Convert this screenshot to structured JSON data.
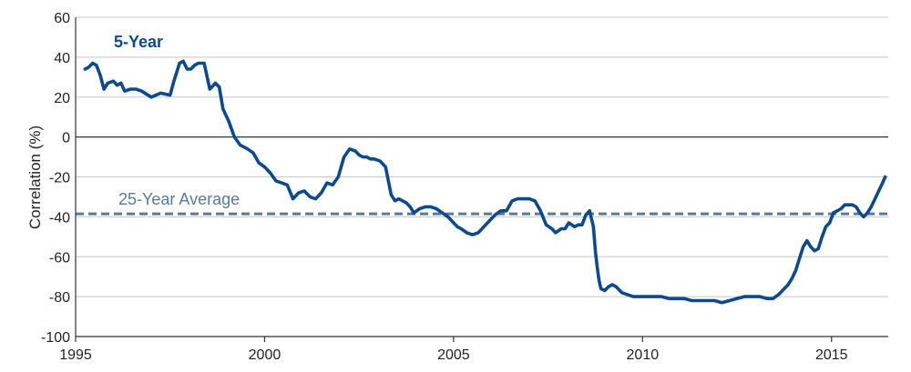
{
  "chart_data": {
    "type": "line",
    "title": "",
    "xlabel": "",
    "ylabel": "Correlation (%)",
    "xlim": [
      1995,
      2016.5
    ],
    "ylim": [
      -100,
      60
    ],
    "x_ticks": [
      1995,
      2000,
      2005,
      2010,
      2015
    ],
    "y_ticks": [
      60,
      40,
      20,
      0,
      -20,
      -40,
      -60,
      -80,
      -100
    ],
    "y_tick_labels": [
      "60",
      "40",
      "20",
      "0",
      "-20",
      "-40",
      "-60",
      "-80",
      "-100"
    ],
    "grid": true,
    "series": [
      {
        "name": "5-Year",
        "color": "#0d4a8c",
        "x": [
          1995.25,
          1995.35,
          1995.45,
          1995.55,
          1995.65,
          1995.75,
          1995.85,
          1996.0,
          1996.1,
          1996.2,
          1996.3,
          1996.45,
          1996.6,
          1996.75,
          1997.0,
          1997.25,
          1997.5,
          1997.6,
          1997.75,
          1997.85,
          1997.95,
          1998.05,
          1998.15,
          1998.25,
          1998.4,
          1998.55,
          1998.7,
          1998.8,
          1998.9,
          1999.05,
          1999.2,
          1999.35,
          1999.45,
          1999.55,
          1999.7,
          1999.85,
          2000.0,
          2000.15,
          2000.3,
          2000.45,
          2000.6,
          2000.75,
          2000.9,
          2001.05,
          2001.2,
          2001.35,
          2001.5,
          2001.65,
          2001.8,
          2001.95,
          2002.1,
          2002.25,
          2002.4,
          2002.5,
          2002.6,
          2002.7,
          2002.8,
          2002.9,
          2003.05,
          2003.2,
          2003.35,
          2003.45,
          2003.55,
          2003.65,
          2003.75,
          2003.85,
          2003.95,
          2004.1,
          2004.25,
          2004.4,
          2004.55,
          2004.7,
          2004.85,
          2005.0,
          2005.1,
          2005.2,
          2005.35,
          2005.5,
          2005.65,
          2005.8,
          2005.95,
          2006.1,
          2006.25,
          2006.4,
          2006.55,
          2006.7,
          2006.85,
          2007.0,
          2007.15,
          2007.3,
          2007.45,
          2007.6,
          2007.7,
          2007.85,
          2007.95,
          2008.05,
          2008.2,
          2008.3,
          2008.4,
          2008.5,
          2008.6,
          2008.7,
          2008.75,
          2008.8,
          2008.85,
          2008.9,
          2009.0,
          2009.1,
          2009.2,
          2009.3,
          2009.45,
          2009.6,
          2009.75,
          2009.9,
          2010.1,
          2010.3,
          2010.5,
          2010.7,
          2010.9,
          2011.1,
          2011.3,
          2011.5,
          2011.7,
          2011.9,
          2012.1,
          2012.3,
          2012.5,
          2012.7,
          2012.9,
          2013.1,
          2013.3,
          2013.45,
          2013.6,
          2013.75,
          2013.85,
          2013.95,
          2014.05,
          2014.15,
          2014.25,
          2014.35,
          2014.45,
          2014.55,
          2014.65,
          2014.75,
          2014.85,
          2014.95,
          2015.05,
          2015.15,
          2015.25,
          2015.35,
          2015.45,
          2015.55,
          2015.65,
          2015.75,
          2015.85,
          2015.95,
          2016.05,
          2016.15,
          2016.25,
          2016.35,
          2016.42
        ],
        "values": [
          34,
          35,
          37,
          36,
          31,
          24,
          27,
          28,
          26,
          27,
          23,
          24,
          24,
          23,
          20,
          22,
          21,
          28,
          37,
          38,
          34,
          34,
          36,
          37,
          37,
          24,
          27,
          25,
          14,
          8,
          0,
          -4,
          -5,
          -6,
          -8,
          -13,
          -15,
          -18,
          -22,
          -23,
          -24,
          -31,
          -28,
          -27,
          -30,
          -31,
          -28,
          -23,
          -24,
          -20,
          -10,
          -6,
          -7,
          -9,
          -10,
          -10,
          -11,
          -11,
          -12,
          -15,
          -29,
          -32,
          -31,
          -32,
          -33,
          -35,
          -38,
          -36,
          -35,
          -35,
          -36,
          -38,
          -40,
          -43,
          -45,
          -46,
          -48,
          -49,
          -48,
          -45,
          -42,
          -39,
          -37,
          -37,
          -32,
          -31,
          -31,
          -31,
          -32,
          -37,
          -44,
          -46,
          -48,
          -46,
          -46,
          -43,
          -45,
          -44,
          -44,
          -39,
          -37,
          -45,
          -57,
          -65,
          -72,
          -76,
          -77,
          -75,
          -74,
          -75,
          -78,
          -79,
          -80,
          -80,
          -80,
          -80,
          -80,
          -81,
          -81,
          -81,
          -82,
          -82,
          -82,
          -82,
          -83,
          -82,
          -81,
          -80,
          -80,
          -80,
          -81,
          -81,
          -79,
          -76,
          -74,
          -71,
          -67,
          -61,
          -55,
          -52,
          -55,
          -57,
          -56,
          -50,
          -45,
          -43,
          -38,
          -37,
          -36,
          -34,
          -34,
          -34,
          -35,
          -38,
          -40,
          -38,
          -35,
          -31,
          -27,
          -23,
          -20
        ]
      }
    ],
    "reference_line": {
      "name": "25-Year Average",
      "value": -38.5,
      "color": "#5b7a99"
    },
    "annotations": [
      {
        "text": "5-Year",
        "color": "#0d4a8c"
      },
      {
        "text": "25-Year Average",
        "color": "#5b7a99"
      }
    ]
  }
}
